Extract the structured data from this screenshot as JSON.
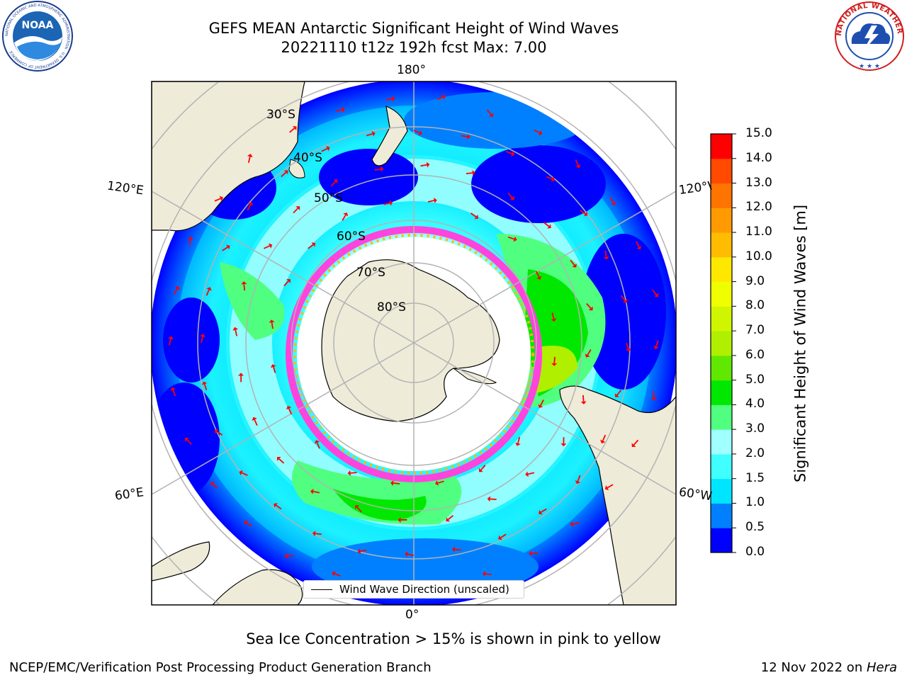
{
  "header": {
    "title_line1": "GEFS MEAN Antarctic Significant Height of Wind Waves",
    "title_line2": "20221110 t12z 192h fcst   Max: 7.00"
  },
  "logos": {
    "noaa": {
      "name": "noaa-logo",
      "text": "NOAA",
      "ring_text": "NATIONAL OCEANIC AND ATMOSPHERIC ADMINISTRATION · U.S. DEPARTMENT OF COMMERCE"
    },
    "nws": {
      "name": "nws-logo",
      "ring_text": "NATIONAL WEATHER SERVICE"
    }
  },
  "map": {
    "projection": "south-polar-stereographic",
    "longitude_labels": {
      "top": "180°",
      "bottom": "0°",
      "left_upper": "120°E",
      "left_lower": "60°E",
      "right_upper": "120°W",
      "right_lower": "60°W"
    },
    "latitude_labels": [
      "30°S",
      "40°S",
      "50°S",
      "60°S",
      "70°S",
      "80°S"
    ],
    "legend_label": "Wind Wave Direction (unscaled)",
    "colors": {
      "land": "#eeebd9",
      "ice": "#ffffff",
      "sea_ice_edge": "#ff44dd",
      "arrow": "#ff0000",
      "graticule": "#b3b3b3"
    }
  },
  "colorbar": {
    "title": "Significant Height of Wind Waves [m]",
    "ticks": [
      "0.0",
      "0.5",
      "1.0",
      "1.5",
      "2.0",
      "3.0",
      "4.0",
      "5.0",
      "6.0",
      "7.0",
      "8.0",
      "9.0",
      "10.0",
      "11.0",
      "12.0",
      "13.0",
      "14.0",
      "15.0"
    ],
    "colors": [
      "#0000ff",
      "#0080ff",
      "#00e5ff",
      "#40ffff",
      "#a0ffff",
      "#50ff80",
      "#00e800",
      "#60e800",
      "#b0ef00",
      "#d0f500",
      "#f0ff00",
      "#ffe800",
      "#ffbc00",
      "#ff9a00",
      "#ff7300",
      "#ff4a00",
      "#ff0000"
    ]
  },
  "footer": {
    "note": "Sea Ice Concentration > 15% is shown in pink to yellow",
    "credit": "NCEP/EMC/Verification Post Processing Product Generation Branch",
    "date_prefix": "12 Nov 2022 on ",
    "date_machine": "Hera"
  }
}
